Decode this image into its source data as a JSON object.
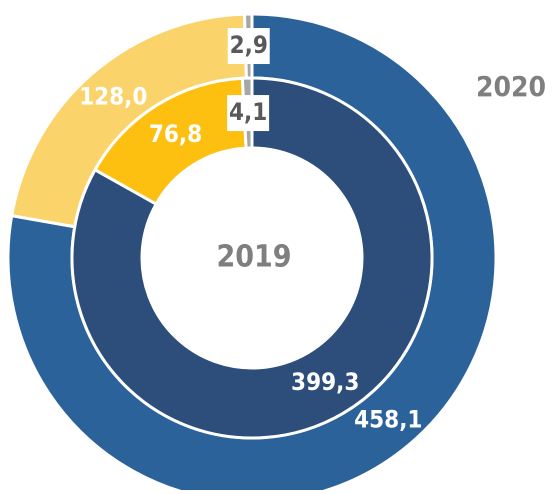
{
  "chart_data": {
    "type": "donut",
    "series": [
      {
        "name": "2020",
        "values": [
          458.1,
          128.0,
          2.9
        ],
        "value_labels": [
          "458,1",
          "128,0",
          "2,9"
        ],
        "colors": [
          "#2a6299",
          "#fbd36b",
          "#a6a6a6"
        ]
      },
      {
        "name": "2019",
        "values": [
          399.3,
          76.8,
          4.1
        ],
        "value_labels": [
          "399,3",
          "76,8",
          "4,1"
        ],
        "colors": [
          "#2d4d7a",
          "#fdc010",
          "#a6a6a6"
        ]
      }
    ]
  }
}
